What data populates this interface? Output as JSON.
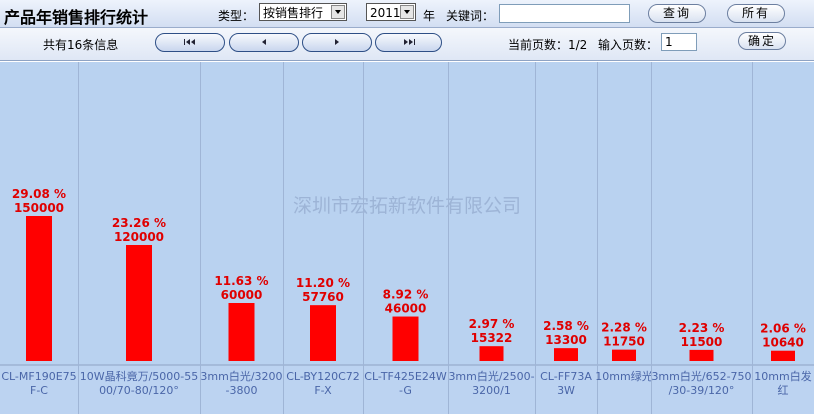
{
  "header": {
    "title": "产品年销售排行统计",
    "type_label": "类型：",
    "type_value": "按销售排行",
    "year_value": "2011",
    "year_label": "年",
    "keyword_label": "关键词：",
    "keyword_value": "",
    "query_button": "查询",
    "all_button": "所有"
  },
  "navbar": {
    "total_info": "共有16条信息",
    "first_icon": "first-page-icon",
    "prev_icon": "prev-page-icon",
    "next_icon": "next-page-icon",
    "last_icon": "last-page-icon",
    "page_info": "当前页数：1/2",
    "page_input_label": "输入页数：",
    "page_input_value": "1",
    "confirm_button": "确定"
  },
  "watermark": "深圳市宏拓新软件有限公司",
  "colors": {
    "bar": "#ff0000",
    "label": "#e00000",
    "background": "#b9d2f0",
    "category_text": "#4a66a8"
  },
  "chart_data": {
    "type": "bar",
    "categories": [
      "CL-MF190E75F-C",
      "10W晶科竟万/5000-5500/70-80/120°",
      "3mm白光/3200-3800",
      "CL-BY120C72F-X",
      "CL-TF425E24W-G",
      "3mm白光/2500-3200/1",
      "CL-FF73A3W",
      "10mm绿光",
      "3mm白光/652-750/30-39/120°",
      "10mm白发红"
    ],
    "values": [
      150000,
      120000,
      60000,
      57760,
      46000,
      15322,
      13300,
      11750,
      11500,
      10640
    ],
    "percent_labels": [
      "29.08 %",
      "23.26 %",
      "11.63 %",
      "11.20 %",
      "8.92 %",
      "2.97 %",
      "2.58 %",
      "2.28 %",
      "2.23 %",
      "2.06 %"
    ]
  }
}
